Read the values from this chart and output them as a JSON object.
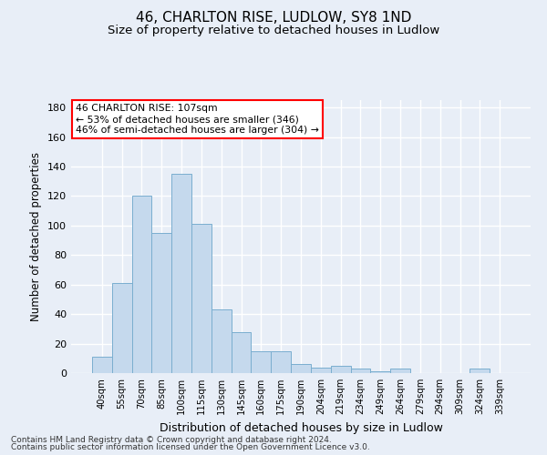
{
  "title_line1": "46, CHARLTON RISE, LUDLOW, SY8 1ND",
  "title_line2": "Size of property relative to detached houses in Ludlow",
  "xlabel": "Distribution of detached houses by size in Ludlow",
  "ylabel": "Number of detached properties",
  "categories": [
    "40sqm",
    "55sqm",
    "70sqm",
    "85sqm",
    "100sqm",
    "115sqm",
    "130sqm",
    "145sqm",
    "160sqm",
    "175sqm",
    "190sqm",
    "204sqm",
    "219sqm",
    "234sqm",
    "249sqm",
    "264sqm",
    "279sqm",
    "294sqm",
    "309sqm",
    "324sqm",
    "339sqm"
  ],
  "values": [
    11,
    61,
    120,
    95,
    135,
    101,
    43,
    28,
    15,
    15,
    6,
    4,
    5,
    3,
    1,
    3,
    0,
    0,
    0,
    3,
    0
  ],
  "bar_color": "#c5d9ed",
  "bar_edgecolor": "#7aaecf",
  "annotation_line1": "46 CHARLTON RISE: 107sqm",
  "annotation_line2": "← 53% of detached houses are smaller (346)",
  "annotation_line3": "46% of semi-detached houses are larger (304) →",
  "vline_x_index": 4.5,
  "ylim": [
    0,
    185
  ],
  "yticks": [
    0,
    20,
    40,
    60,
    80,
    100,
    120,
    140,
    160,
    180
  ],
  "footer_line1": "Contains HM Land Registry data © Crown copyright and database right 2024.",
  "footer_line2": "Contains public sector information licensed under the Open Government Licence v3.0.",
  "bg_color": "#e8eef7",
  "plot_bg_color": "#e8eef7",
  "grid_color": "#ffffff",
  "title_fontsize": 11,
  "subtitle_fontsize": 9.5,
  "ylabel_fontsize": 8.5,
  "xlabel_fontsize": 9
}
